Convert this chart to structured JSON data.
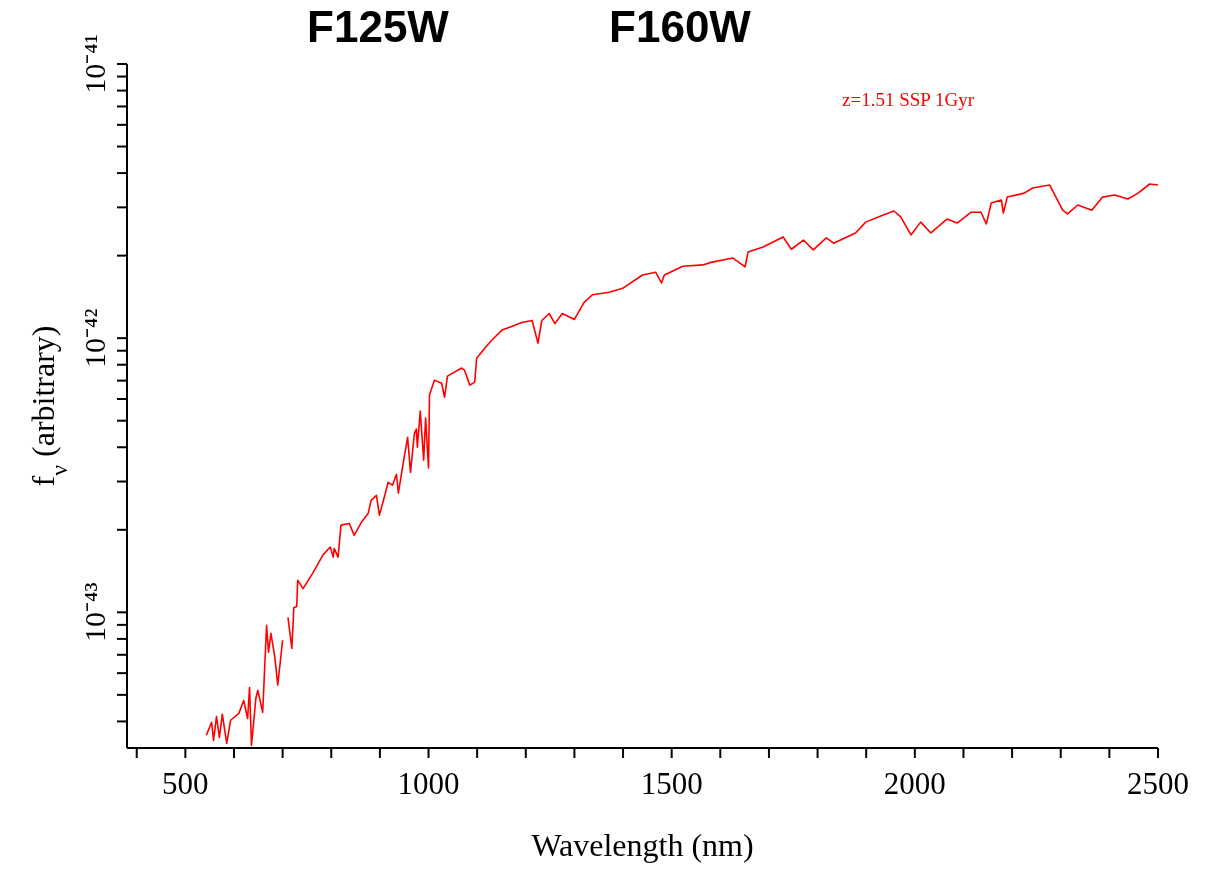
{
  "chart_data": {
    "type": "line",
    "xlabel": "Wavelength (nm)",
    "ylabel": "f$_{ν}$ (arbitrary)",
    "annotations": [
      "F125W",
      "F160W",
      "z=1.51 SSP 1Gyr"
    ],
    "log": "y",
    "grid": false,
    "legend": false,
    "marker": "none",
    "line_style": "solid",
    "xlim": [
      380,
      2500
    ],
    "xticks": [
      {
        "value": 400,
        "label": null
      },
      500,
      {
        "value": 600,
        "label": null
      },
      {
        "value": 700,
        "label": null
      },
      {
        "value": 800,
        "label": null
      },
      {
        "value": 900,
        "label": null
      },
      1000,
      {
        "value": 1100,
        "label": null
      },
      {
        "value": 1200,
        "label": null
      },
      {
        "value": 1300,
        "label": null
      },
      {
        "value": 1400,
        "label": null
      },
      1500,
      {
        "value": 1600,
        "label": null
      },
      {
        "value": 1700,
        "label": null
      },
      {
        "value": 1800,
        "label": null
      },
      {
        "value": 1900,
        "label": null
      },
      2000,
      {
        "value": 2100,
        "label": null
      },
      {
        "value": 2200,
        "label": null
      },
      {
        "value": 2300,
        "label": null
      },
      {
        "value": 2400,
        "label": null
      },
      2500
    ],
    "ylim": [
      3.2e-44,
      1e-41
    ],
    "yticks": [
      {
        "value": 4e-44,
        "label": null
      },
      {
        "value": 5e-44,
        "label": null
      },
      {
        "value": 6e-44,
        "label": null
      },
      {
        "value": 7e-44,
        "label": null
      },
      {
        "value": 8e-44,
        "label": null
      },
      {
        "value": 9e-44,
        "label": null
      },
      {
        "value": 1e-43,
        "label": "10⁻⁴³"
      },
      {
        "value": 2e-43,
        "label": null
      },
      {
        "value": 3e-43,
        "label": null
      },
      {
        "value": 4e-43,
        "label": null
      },
      {
        "value": 5e-43,
        "label": null
      },
      {
        "value": 6e-43,
        "label": null
      },
      {
        "value": 7e-43,
        "label": null
      },
      {
        "value": 8e-43,
        "label": null
      },
      {
        "value": 9e-43,
        "label": null
      },
      {
        "value": 1e-42,
        "label": "10⁻⁴²"
      },
      {
        "value": 2e-42,
        "label": null
      },
      {
        "value": 3e-42,
        "label": null
      },
      {
        "value": 4e-42,
        "label": null
      },
      {
        "value": 5e-42,
        "label": null
      },
      {
        "value": 6e-42,
        "label": null
      },
      {
        "value": 7e-42,
        "label": null
      },
      {
        "value": 8e-42,
        "label": null
      },
      {
        "value": 9e-42,
        "label": null
      },
      {
        "value": 1e-41,
        "label": "10⁻⁴¹"
      }
    ],
    "series": [
      {
        "color": "#ff0000",
        "x": [
          543,
          554,
          558,
          564,
          570,
          576,
          585,
          593,
          610,
          620,
          628,
          632,
          636,
          645,
          649,
          659,
          667,
          671,
          676,
          684,
          690,
          700,
          702,
          711,
          719,
          723,
          729,
          731,
          742,
          762,
          783,
          798,
          804,
          806,
          814,
          820,
          837,
          847,
          862,
          876,
          882,
          893,
          899,
          909,
          917,
          926,
          934,
          938,
          948,
          957,
          963,
          971,
          975,
          977,
          983,
          990,
          994,
          1000,
          1002,
          1012,
          1027,
          1033,
          1039,
          1068,
          1074,
          1085,
          1095,
          1099,
          1116,
          1130,
          1151,
          1192,
          1213,
          1225,
          1233,
          1248,
          1260,
          1275,
          1300,
          1320,
          1337,
          1372,
          1399,
          1440,
          1467,
          1479,
          1485,
          1523,
          1564,
          1581,
          1626,
          1651,
          1657,
          1688,
          1729,
          1746,
          1771,
          1791,
          1818,
          1833,
          1878,
          1899,
          1930,
          1957,
          1971,
          1992,
          2012,
          2033,
          2066,
          2087,
          2116,
          2136,
          2147,
          2157,
          2178,
          2182,
          2190,
          2225,
          2242,
          2277,
          2304,
          2314,
          2335,
          2364,
          2386,
          2411,
          2438,
          2459,
          2483,
          2500
        ],
        "values": [
          3.56e-44,
          3.97e-44,
          3.41e-44,
          4.17e-44,
          3.5e-44,
          4.25e-44,
          3.33e-44,
          4.04e-44,
          4.28e-44,
          4.77e-44,
          4.1e-44,
          5.32e-44,
          3.27e-44,
          4.86e-44,
          5.19e-44,
          4.32e-44,
          8.97e-44,
          7.15e-44,
          8.38e-44,
          6.85e-44,
          5.42e-44,
          7.91e-44,
          null,
          9.59e-44,
          7.39e-44,
          1.04e-43,
          1.05e-43,
          1.31e-43,
          1.22e-43,
          1.39e-43,
          1.62e-43,
          1.73e-43,
          1.59e-43,
          1.71e-43,
          1.59e-43,
          2.08e-43,
          2.11e-43,
          1.91e-43,
          2.13e-43,
          2.3e-43,
          2.56e-43,
          2.67e-43,
          2.26e-43,
          2.63e-43,
          2.98e-43,
          2.91e-43,
          3.19e-43,
          2.72e-43,
          3.5e-43,
          4.35e-43,
          3.24e-43,
          4.5e-43,
          4.66e-43,
          4e-43,
          5.42e-43,
          3.59e-43,
          5.11e-43,
          3.36e-43,
          6.19e-43,
          7.03e-43,
          6.85e-43,
          6.09e-43,
          7.27e-43,
          7.78e-43,
          7.64e-43,
          6.74e-43,
          6.91e-43,
          8.45e-43,
          9.2e-43,
          9.83e-43,
          1.07e-42,
          1.14e-42,
          1.16e-42,
          9.59e-43,
          1.16e-42,
          1.23e-42,
          1.13e-42,
          1.23e-42,
          1.17e-42,
          1.35e-42,
          1.44e-42,
          1.47e-42,
          1.52e-42,
          1.7e-42,
          1.74e-42,
          1.59e-42,
          1.7e-42,
          1.83e-42,
          1.85e-42,
          1.89e-42,
          1.96e-42,
          1.82e-42,
          2.06e-42,
          2.15e-42,
          2.34e-42,
          2.11e-42,
          2.28e-42,
          2.1e-42,
          2.32e-42,
          2.22e-42,
          2.42e-42,
          2.65e-42,
          2.79e-42,
          2.91e-42,
          2.77e-42,
          2.38e-42,
          2.65e-42,
          2.42e-42,
          2.72e-42,
          2.63e-42,
          2.88e-42,
          2.88e-42,
          2.61e-42,
          3.11e-42,
          3.19e-42,
          2.86e-42,
          3.27e-42,
          3.38e-42,
          3.53e-42,
          3.62e-42,
          2.93e-42,
          2.84e-42,
          3.06e-42,
          2.93e-42,
          3.27e-42,
          3.33e-42,
          3.22e-42,
          3.38e-42,
          3.65e-42,
          3.62e-42
        ]
      }
    ]
  }
}
